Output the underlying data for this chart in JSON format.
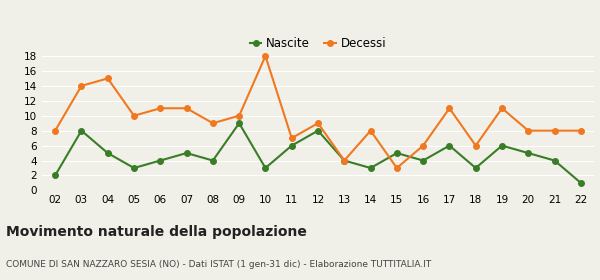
{
  "years": [
    "02",
    "03",
    "04",
    "05",
    "06",
    "07",
    "08",
    "09",
    "10",
    "11",
    "12",
    "13",
    "14",
    "15",
    "16",
    "17",
    "18",
    "19",
    "20",
    "21",
    "22"
  ],
  "nascite": [
    2,
    8,
    5,
    3,
    4,
    5,
    4,
    9,
    3,
    6,
    8,
    4,
    3,
    5,
    4,
    6,
    3,
    6,
    5,
    4,
    1
  ],
  "decessi": [
    8,
    14,
    15,
    10,
    11,
    11,
    9,
    10,
    18,
    7,
    9,
    4,
    8,
    3,
    6,
    11,
    6,
    11,
    8,
    8,
    8
  ],
  "nascite_color": "#3a7d27",
  "decessi_color": "#f07820",
  "background_color": "#f0f0e8",
  "grid_color": "#ffffff",
  "title": "Movimento naturale della popolazione",
  "subtitle": "COMUNE DI SAN NAZZARO SESIA (NO) - Dati ISTAT (1 gen-31 dic) - Elaborazione TUTTITALIA.IT",
  "legend_labels": [
    "Nascite",
    "Decessi"
  ],
  "ylim": [
    0,
    18
  ],
  "yticks": [
    0,
    2,
    4,
    6,
    8,
    10,
    12,
    14,
    16,
    18
  ],
  "marker_size": 4,
  "line_width": 1.5,
  "title_fontsize": 10,
  "subtitle_fontsize": 6.5,
  "tick_fontsize": 7.5,
  "legend_fontsize": 8.5
}
